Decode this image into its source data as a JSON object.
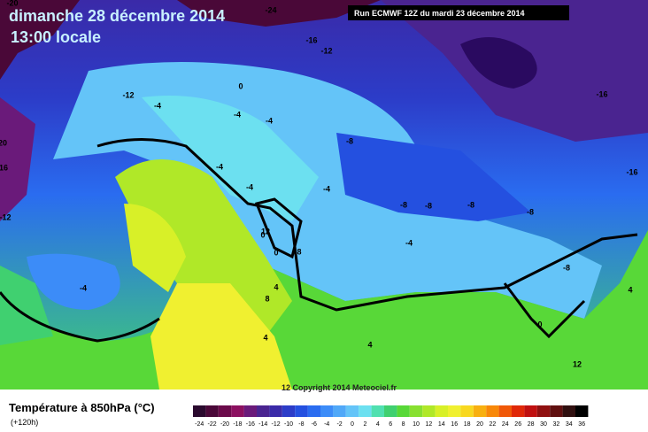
{
  "header": {
    "date": "dimanche 28 décembre 2014",
    "time": "13:00 locale",
    "run": "Run ECMWF 12Z du mardi 23 décembre 2014"
  },
  "footer": {
    "title": "Température à 850hPa (°C)",
    "lead": "(+120h)",
    "copyright": "12 Copyright 2014 Meteociel.fr"
  },
  "colorbar": {
    "ticks": [
      -24,
      -22,
      -20,
      -18,
      -16,
      -14,
      -12,
      -10,
      -8,
      -6,
      -4,
      -2,
      0,
      2,
      4,
      6,
      8,
      10,
      12,
      14,
      16,
      18,
      20,
      22,
      24,
      26,
      28,
      30,
      32,
      34,
      36
    ],
    "colors": [
      "#2b0a2e",
      "#4a0838",
      "#6b0a4a",
      "#8c1060",
      "#6a1a7a",
      "#4a2490",
      "#3a2aa8",
      "#2c3cc8",
      "#2450e0",
      "#2a6cf0",
      "#3c8cf8",
      "#50a8f8",
      "#64c4f8",
      "#6ce0f0",
      "#50e0b0",
      "#40d070",
      "#58d838",
      "#88e030",
      "#b0e828",
      "#d8f028",
      "#f0f030",
      "#f8d820",
      "#f8b010",
      "#f88808",
      "#f05808",
      "#e02808",
      "#c01010",
      "#901010",
      "#601010",
      "#301010",
      "#000000"
    ]
  },
  "contour_labels": [
    "-20",
    "-24",
    "-16",
    "-12",
    "-12",
    "-12",
    "-16",
    "-16",
    "0",
    "-4",
    "-4",
    "-4",
    "-4",
    "-4",
    "-8",
    "-8",
    "-8",
    "-8",
    "-8",
    "-4",
    "-4",
    "-8",
    "0",
    "0",
    "4",
    "4",
    "8",
    "8",
    "4",
    "0",
    "-4",
    "4",
    "12",
    "20",
    "16",
    "12"
  ]
}
